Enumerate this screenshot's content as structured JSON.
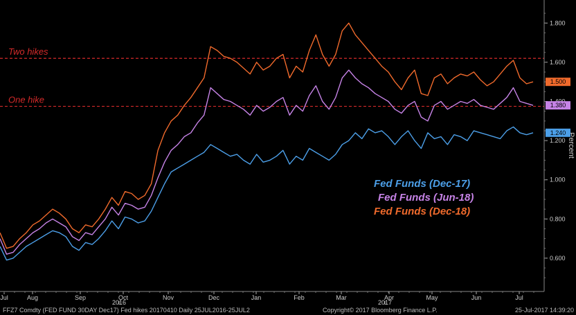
{
  "chart_data": {
    "type": "line",
    "ylabel": "Percent",
    "ylim": [
      0.43,
      1.9
    ],
    "yticks": [
      0.6,
      0.8,
      1.0,
      1.2,
      1.4,
      1.6,
      1.8
    ],
    "ytick_labels": [
      "0.600",
      "0.800",
      "1.000",
      "1.200",
      "1.400",
      "1.600",
      "1.800"
    ],
    "months": [
      "Jul",
      "Aug",
      "Sep",
      "Oct",
      "Nov",
      "Dec",
      "Jan",
      "Feb",
      "Mar",
      "Apr",
      "May",
      "Jun",
      "Jul"
    ],
    "years": [
      {
        "after_month": "Oct",
        "label": "2016"
      },
      {
        "after_month": "Apr",
        "label": "2017"
      }
    ],
    "reference_lines": [
      {
        "label": "Two hikes",
        "y": 1.62,
        "color": "#d42a2a"
      },
      {
        "label": "One hike",
        "y": 1.375,
        "color": "#d42a2a"
      }
    ],
    "series": [
      {
        "name": "Fed Funds (Dec-17)",
        "color": "#4c9fe8",
        "last_value": "1.240",
        "values": [
          0.66,
          0.59,
          0.6,
          0.63,
          0.66,
          0.68,
          0.7,
          0.72,
          0.74,
          0.73,
          0.71,
          0.66,
          0.64,
          0.68,
          0.67,
          0.7,
          0.74,
          0.79,
          0.75,
          0.81,
          0.8,
          0.78,
          0.79,
          0.84,
          0.91,
          0.98,
          1.04,
          1.06,
          1.08,
          1.1,
          1.12,
          1.14,
          1.18,
          1.16,
          1.14,
          1.12,
          1.13,
          1.1,
          1.08,
          1.13,
          1.09,
          1.1,
          1.12,
          1.15,
          1.08,
          1.12,
          1.1,
          1.16,
          1.14,
          1.12,
          1.1,
          1.13,
          1.18,
          1.2,
          1.24,
          1.21,
          1.26,
          1.24,
          1.25,
          1.22,
          1.18,
          1.22,
          1.25,
          1.2,
          1.16,
          1.24,
          1.21,
          1.22,
          1.18,
          1.23,
          1.22,
          1.2,
          1.25,
          1.24,
          1.23,
          1.22,
          1.21,
          1.25,
          1.27,
          1.24,
          1.23,
          1.24
        ]
      },
      {
        "name": "Fed Funds (Jun-18)",
        "color": "#c683e6",
        "last_value": "1.380",
        "values": [
          0.7,
          0.62,
          0.63,
          0.67,
          0.7,
          0.73,
          0.75,
          0.78,
          0.8,
          0.78,
          0.76,
          0.71,
          0.69,
          0.73,
          0.72,
          0.76,
          0.8,
          0.86,
          0.82,
          0.88,
          0.87,
          0.85,
          0.86,
          0.92,
          1.01,
          1.09,
          1.15,
          1.18,
          1.22,
          1.24,
          1.29,
          1.33,
          1.47,
          1.44,
          1.41,
          1.4,
          1.38,
          1.36,
          1.33,
          1.38,
          1.35,
          1.37,
          1.4,
          1.42,
          1.33,
          1.38,
          1.35,
          1.43,
          1.48,
          1.4,
          1.36,
          1.42,
          1.52,
          1.56,
          1.52,
          1.49,
          1.47,
          1.44,
          1.42,
          1.4,
          1.36,
          1.34,
          1.38,
          1.4,
          1.32,
          1.3,
          1.38,
          1.4,
          1.36,
          1.38,
          1.4,
          1.39,
          1.41,
          1.38,
          1.37,
          1.36,
          1.39,
          1.42,
          1.47,
          1.4,
          1.39,
          1.38
        ]
      },
      {
        "name": "Fed Funds (Dec-18)",
        "color": "#f06a2c",
        "last_value": "1.500",
        "values": [
          0.73,
          0.65,
          0.66,
          0.7,
          0.73,
          0.77,
          0.79,
          0.82,
          0.85,
          0.83,
          0.8,
          0.75,
          0.73,
          0.77,
          0.76,
          0.8,
          0.85,
          0.91,
          0.87,
          0.94,
          0.93,
          0.9,
          0.92,
          0.98,
          1.15,
          1.24,
          1.3,
          1.33,
          1.38,
          1.42,
          1.47,
          1.52,
          1.68,
          1.66,
          1.63,
          1.62,
          1.6,
          1.57,
          1.54,
          1.6,
          1.56,
          1.58,
          1.62,
          1.64,
          1.52,
          1.58,
          1.55,
          1.66,
          1.74,
          1.64,
          1.58,
          1.64,
          1.76,
          1.8,
          1.74,
          1.7,
          1.66,
          1.62,
          1.58,
          1.55,
          1.5,
          1.46,
          1.52,
          1.56,
          1.44,
          1.43,
          1.52,
          1.54,
          1.49,
          1.52,
          1.54,
          1.53,
          1.55,
          1.51,
          1.48,
          1.5,
          1.54,
          1.58,
          1.61,
          1.52,
          1.49,
          1.5
        ]
      }
    ]
  },
  "footer": {
    "left": "FFZ7 Comdty (FED FUND 30DAY   Dec17) Fed hikes 20170410   Daily 25JUL2016-25JUL2",
    "center": "Copyright© 2017 Bloomberg Finance L.P.",
    "right": "25-Jul-2017 14:39:20"
  }
}
